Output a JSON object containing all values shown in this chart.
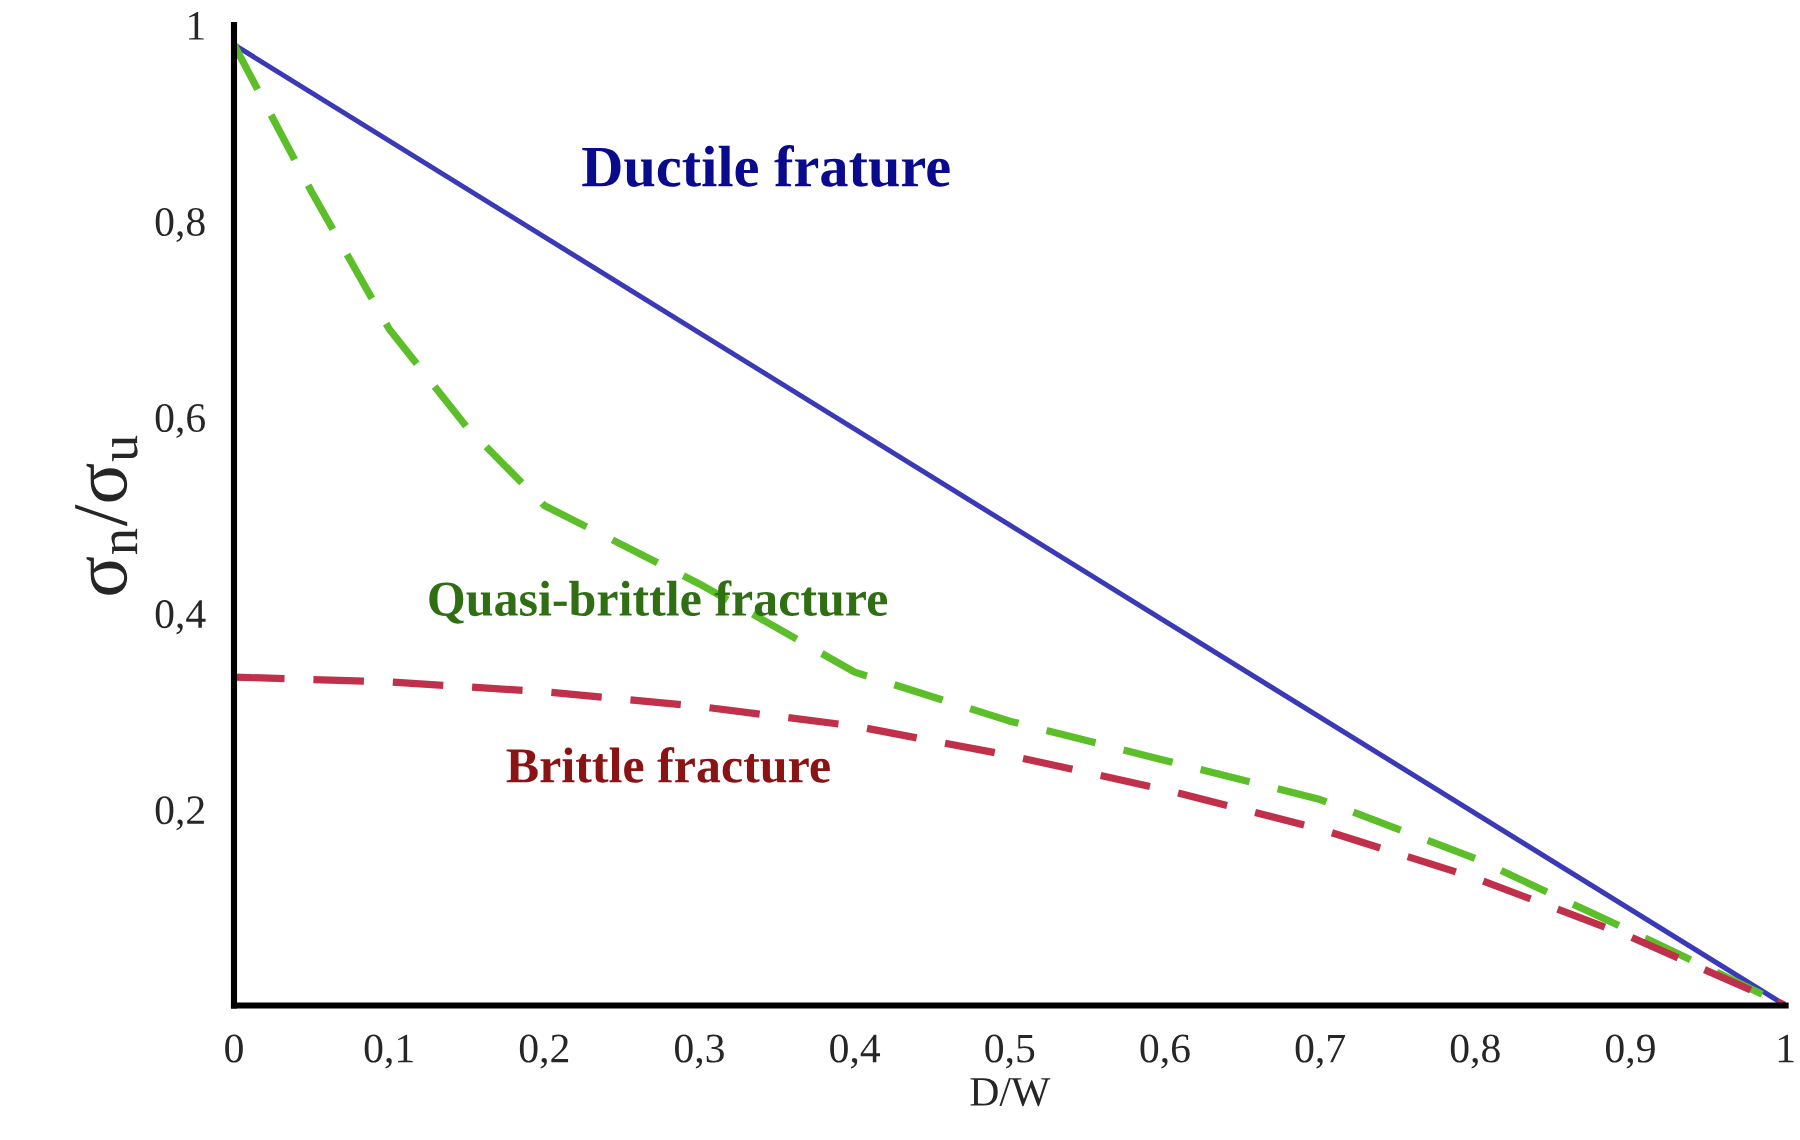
{
  "chart_data": {
    "type": "line",
    "xlabel": "D/W",
    "ylabel": "σ$_{n}$/σ$_{u}$",
    "xlim": [
      0,
      1
    ],
    "ylim": [
      0,
      1
    ],
    "xticks": [
      {
        "value": 0,
        "label": "0"
      },
      {
        "value": 0.1,
        "label": "0,1"
      },
      {
        "value": 0.2,
        "label": "0,2"
      },
      {
        "value": 0.3,
        "label": "0,3"
      },
      {
        "value": 0.4,
        "label": "0,4"
      },
      {
        "value": 0.5,
        "label": "0,5"
      },
      {
        "value": 0.6,
        "label": "0,6"
      },
      {
        "value": 0.7,
        "label": "0,7"
      },
      {
        "value": 0.8,
        "label": "0,8"
      },
      {
        "value": 0.9,
        "label": "0,9"
      },
      1
    ],
    "yticks": [
      {
        "value": 0,
        "label": null
      },
      {
        "value": 0.2,
        "label": "0,2"
      },
      {
        "value": 0.4,
        "label": "0,4"
      },
      {
        "value": 0.6,
        "label": "0,6"
      },
      {
        "value": 0.8,
        "label": "0,8"
      },
      1
    ],
    "grid": false,
    "legend": false,
    "series": [
      {
        "name": "Ductile frature",
        "color": "#3a3ab8",
        "line_style": "solid",
        "x": [
          0,
          1
        ],
        "values": [
          0.98,
          0
        ]
      },
      {
        "name": "Quasi-brittle fracture",
        "color": "#5cbf2a",
        "line_style": "dashed",
        "x": [
          0,
          0.05,
          0.1,
          0.15,
          0.2,
          0.3,
          0.4,
          0.5,
          0.6,
          0.7,
          0.8,
          0.9,
          1
        ],
        "values": [
          0.98,
          0.83,
          0.69,
          0.59,
          0.51,
          0.43,
          0.34,
          0.29,
          0.25,
          0.21,
          0.15,
          0.076,
          0
        ]
      },
      {
        "name": "Brittle fracture",
        "color": "#c0304a",
        "line_style": "dashed",
        "x": [
          0,
          0.1,
          0.2,
          0.3,
          0.4,
          0.5,
          0.6,
          0.7,
          0.8,
          0.9,
          1
        ],
        "values": [
          0.335,
          0.33,
          0.32,
          0.305,
          0.285,
          0.255,
          0.22,
          0.18,
          0.13,
          0.07,
          0
        ]
      }
    ]
  }
}
